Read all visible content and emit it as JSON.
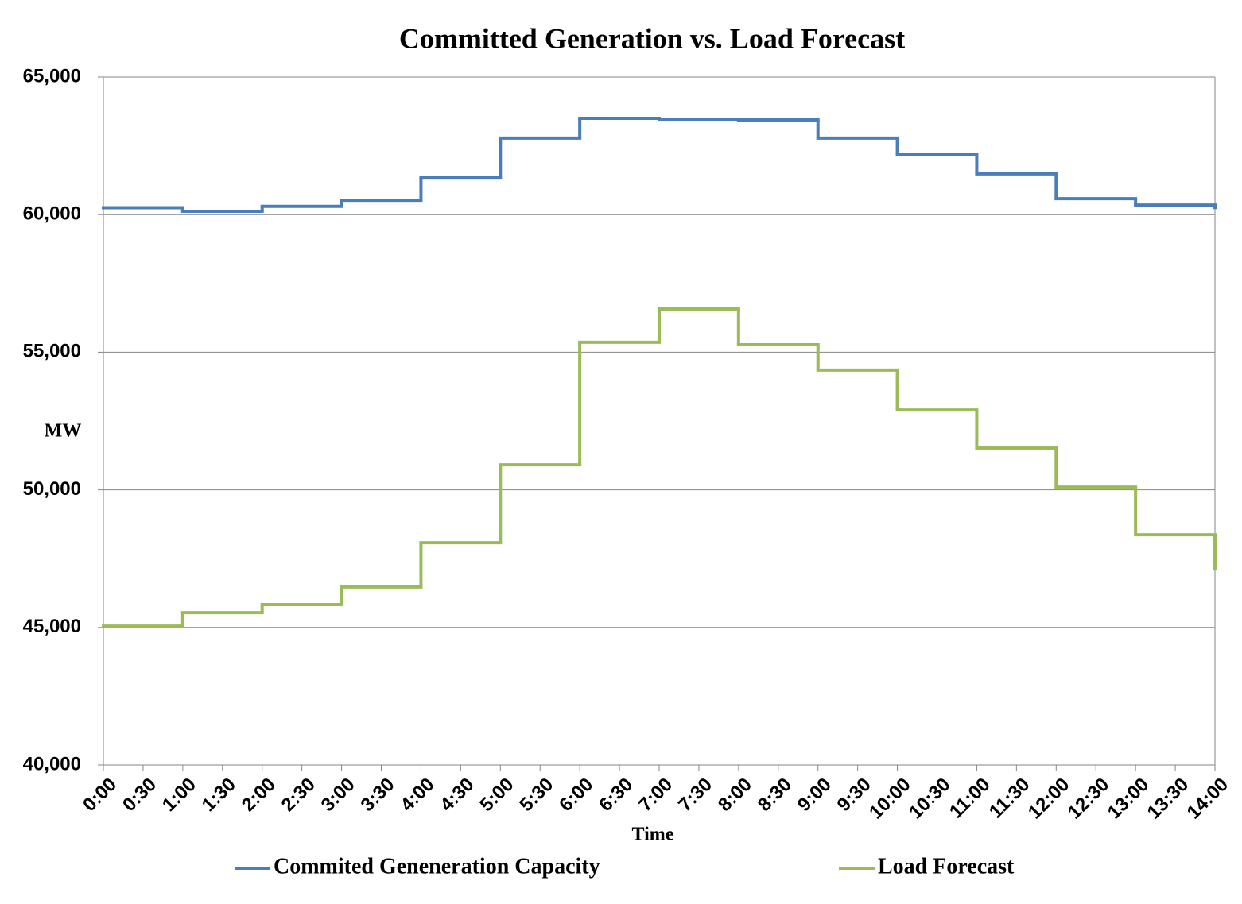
{
  "chart_data": {
    "type": "step-line",
    "step": "post",
    "title": "Committed Generation vs. Load Forecast",
    "xlabel": "Time",
    "ylabel": "MW",
    "x": [
      "0:00",
      "1:00",
      "2:00",
      "3:00",
      "4:00",
      "5:00",
      "6:00",
      "7:00",
      "8:00",
      "9:00",
      "10:00",
      "11:00",
      "12:00",
      "13:00",
      "14:00"
    ],
    "xticks": [
      "0:00",
      "0:30",
      "1:00",
      "1:30",
      "2:00",
      "2:30",
      "3:00",
      "3:30",
      "4:00",
      "4:30",
      "5:00",
      "5:30",
      "6:00",
      "6:30",
      "7:00",
      "7:30",
      "8:00",
      "8:30",
      "9:00",
      "9:30",
      "10:00",
      "10:30",
      "11:00",
      "11:30",
      "12:00",
      "12:30",
      "13:00",
      "13:30",
      "14:00"
    ],
    "ylim": [
      40000,
      65000
    ],
    "yticks": [
      {
        "value": 40000,
        "label": "40,000"
      },
      {
        "value": 45000,
        "label": "45,000"
      },
      {
        "value": 50000,
        "label": "50,000"
      },
      {
        "value": 55000,
        "label": "55,000"
      },
      {
        "value": 60000,
        "label": "60,000"
      },
      {
        "value": 65000,
        "label": "65,000"
      }
    ],
    "grid": true,
    "legend": "bottom",
    "series": [
      {
        "name": "Commited Geneneration Capacity",
        "color": "#4a7ebb",
        "values": [
          60250,
          60120,
          60300,
          60520,
          61360,
          62780,
          63500,
          63470,
          63440,
          62780,
          62170,
          61480,
          60580,
          60350,
          60200
        ]
      },
      {
        "name": "Load Forecast",
        "color": "#9bbb59",
        "values": [
          45050,
          45540,
          45830,
          46470,
          48080,
          50910,
          55360,
          56570,
          55270,
          54350,
          52900,
          51520,
          50100,
          48370,
          47070
        ]
      }
    ]
  }
}
